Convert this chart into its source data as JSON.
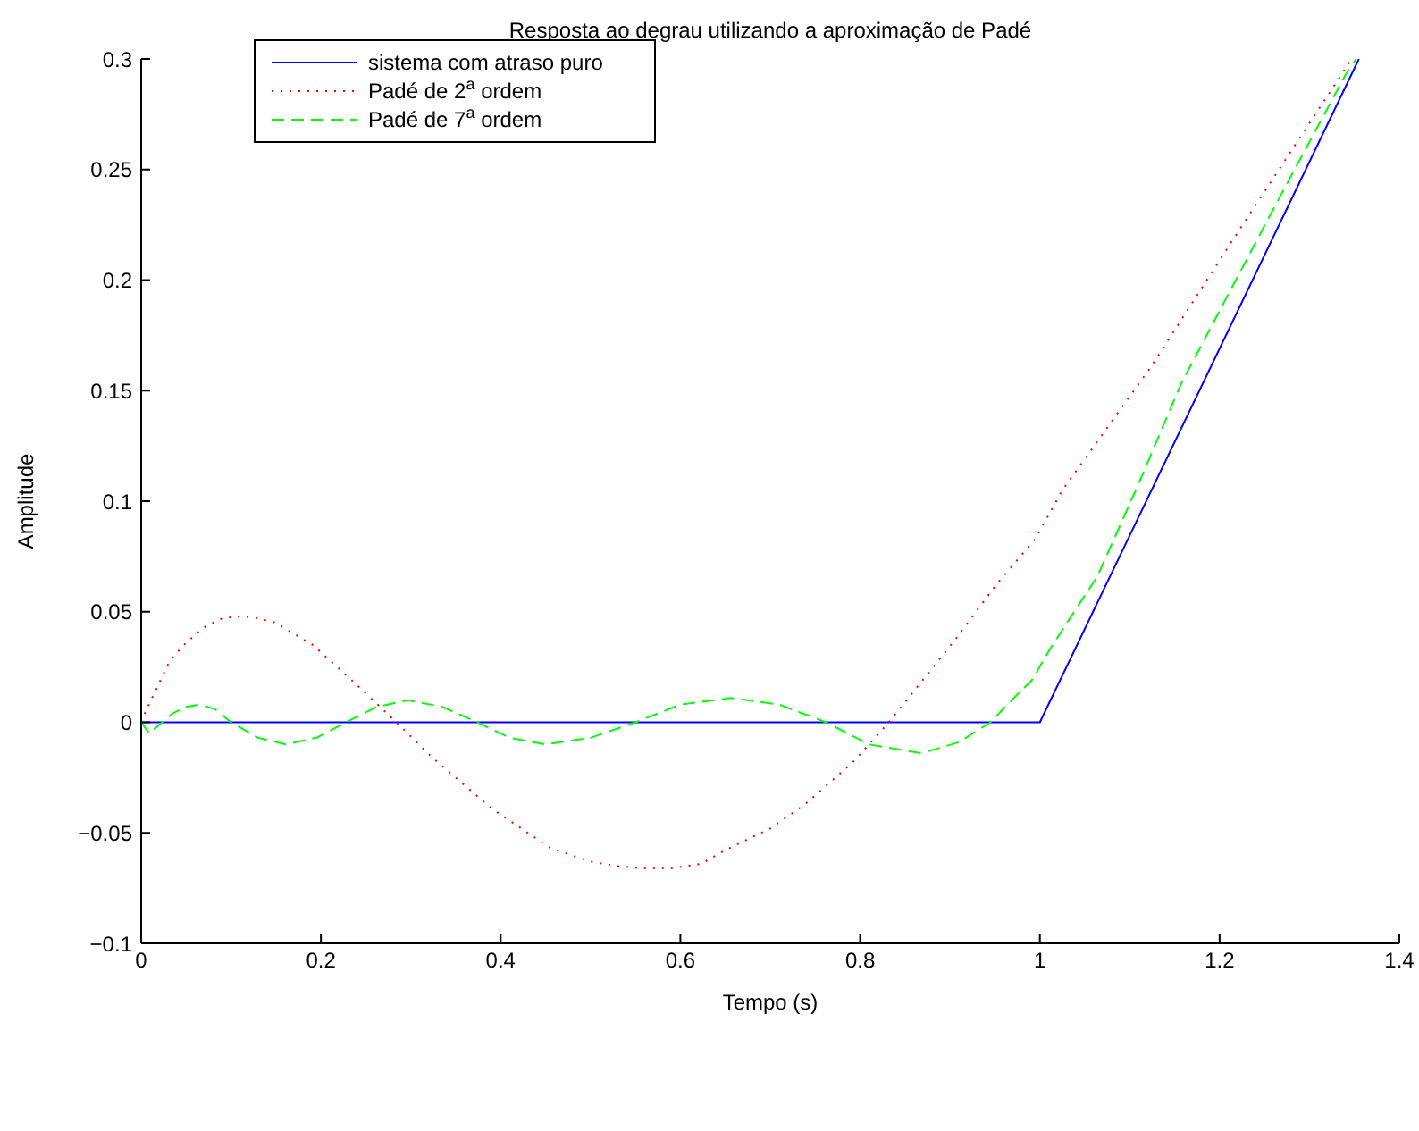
{
  "chart_data": {
    "type": "line",
    "title": "Resposta ao degrau utilizando a aproximação de Padé",
    "xlabel": "Tempo (s)",
    "ylabel": "Amplitude",
    "xlim": [
      0,
      1.4
    ],
    "xticks": [
      0,
      0.2,
      0.4,
      0.6,
      0.8,
      1,
      1.2,
      1.4
    ],
    "ylim": [
      -0.1,
      0.3
    ],
    "yticks": [
      -0.1,
      -0.05,
      0,
      0.05,
      0.1,
      0.15,
      0.2,
      0.25,
      0.3
    ],
    "legend": "top left",
    "marker": "none",
    "series": [
      {
        "name": "sistema com atraso puro",
        "color": "#0000ff",
        "line_style": "solid",
        "x": [
          0,
          1,
          1.355
        ],
        "values": [
          0,
          0,
          0.3
        ]
      },
      {
        "name": "Padé de 2$^{a}$ ordem",
        "color": "#ff0000",
        "line_style": "dotted",
        "x": [
          0,
          0.005,
          0.032,
          0.05,
          0.07,
          0.09,
          0.112,
          0.13,
          0.15,
          0.17,
          0.191,
          0.237,
          0.284,
          0.324,
          0.39,
          0.456,
          0.5,
          0.53,
          0.556,
          0.59,
          0.623,
          0.649,
          0.7,
          0.739,
          0.792,
          0.832,
          0.905,
          0.951,
          0.995,
          1.025,
          1.124,
          1.224,
          1.347
        ],
        "values": [
          0,
          0.005,
          0.028,
          0.036,
          0.043,
          0.047,
          0.048,
          0.047,
          0.045,
          0.04,
          0.035,
          0.018,
          0,
          -0.016,
          -0.039,
          -0.057,
          -0.063,
          -0.065,
          -0.066,
          -0.066,
          -0.064,
          -0.058,
          -0.048,
          -0.037,
          -0.018,
          0,
          0.037,
          0.062,
          0.083,
          0.105,
          0.161,
          0.224,
          0.3
        ]
      },
      {
        "name": "Padé de 7$^{a}$ ordem",
        "color": "#00ff00",
        "line_style": "dashed",
        "x": [
          0,
          0.009,
          0.035,
          0.05,
          0.065,
          0.082,
          0.1,
          0.13,
          0.161,
          0.195,
          0.228,
          0.262,
          0.297,
          0.335,
          0.374,
          0.41,
          0.45,
          0.5,
          0.55,
          0.6,
          0.656,
          0.71,
          0.762,
          0.81,
          0.868,
          0.91,
          0.945,
          0.971,
          0.991,
          1.011,
          1.035,
          1.064,
          1.11,
          1.157,
          1.257,
          1.343,
          1.352
        ],
        "values": [
          0,
          -0.005,
          0.004,
          0.007,
          0.008,
          0.006,
          0,
          -0.007,
          -0.01,
          -0.007,
          0,
          0.007,
          0.01,
          0.007,
          0,
          -0.007,
          -0.01,
          -0.007,
          0,
          0.008,
          0.011,
          0.008,
          0,
          -0.01,
          -0.014,
          -0.009,
          0,
          0.011,
          0.019,
          0.033,
          0.048,
          0.066,
          0.108,
          0.153,
          0.23,
          0.295,
          0.3
        ]
      }
    ]
  }
}
